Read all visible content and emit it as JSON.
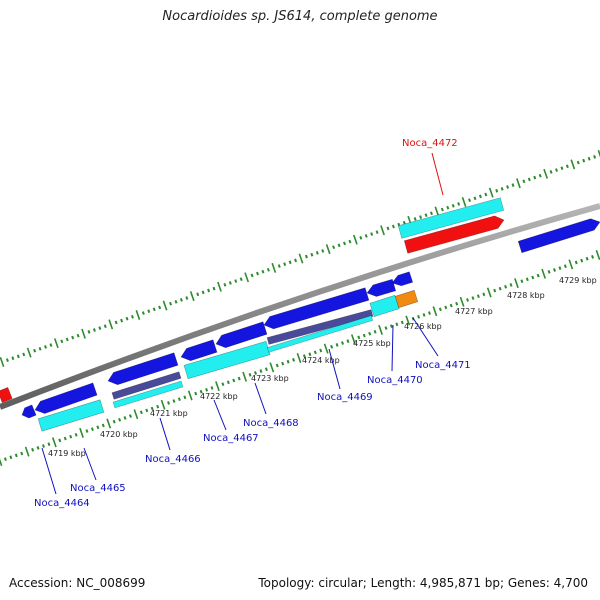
{
  "title": "Nocardioides sp. JS614, complete genome",
  "footer": {
    "accession": "Accession: NC_008699",
    "topology": "Topology: circular; Length: 4,985,871 bp; Genes: 4,700"
  },
  "colors": {
    "backbone": "#8a8a8a",
    "tick": "#2e8b2e",
    "gene_blue": "#1515e0",
    "gene_cyan": "#22eef0",
    "gene_purple": "#4a4a9a",
    "gene_red": "#f01010",
    "gene_orange": "#f08a10",
    "label_blue": "#1010c0",
    "label_red": "#e01010"
  },
  "scale_labels": [
    "4719 kbp",
    "4720 kbp",
    "4721 kbp",
    "4722 kbp",
    "4723 kbp",
    "4724 kbp",
    "4725 kbp",
    "4726 kbp",
    "4727 kbp",
    "4728 kbp",
    "4729 kbp"
  ],
  "gene_labels": [
    {
      "name": "Noca_4464",
      "color": "blue"
    },
    {
      "name": "Noca_4465",
      "color": "blue"
    },
    {
      "name": "Noca_4466",
      "color": "blue"
    },
    {
      "name": "Noca_4467",
      "color": "blue"
    },
    {
      "name": "Noca_4468",
      "color": "blue"
    },
    {
      "name": "Noca_4469",
      "color": "blue"
    },
    {
      "name": "Noca_4470",
      "color": "blue"
    },
    {
      "name": "Noca_4471",
      "color": "blue"
    },
    {
      "name": "Noca_4472",
      "color": "red"
    }
  ]
}
